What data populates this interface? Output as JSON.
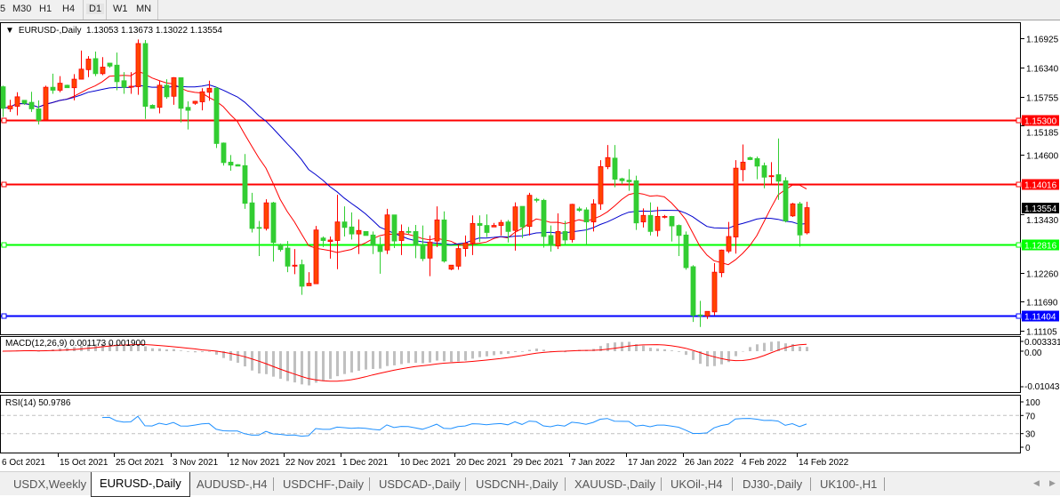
{
  "toolbar": {
    "timeframes": [
      "5",
      "M30",
      "H1",
      "H4",
      "D1",
      "W1",
      "MN"
    ],
    "active": "D1"
  },
  "chart": {
    "symbol": "EURUSD-,Daily",
    "ohlc": "1.13053 1.13673 1.13022 1.13554",
    "current_price": "1.13554",
    "colors": {
      "bull_body": "#ff4500",
      "bull_border": "#ff0000",
      "bear_body": "#32cd32",
      "ma_fast": "#ff0000",
      "ma_slow": "#0000cd",
      "macd_hist": "#c0c0c0",
      "macd_signal": "#ff0000",
      "rsi": "#1e90ff"
    }
  },
  "levels": [
    {
      "value": 1.153,
      "label": "1.15300",
      "color": "#ff0000"
    },
    {
      "value": 1.14016,
      "label": "1.14016",
      "color": "#ff0000"
    },
    {
      "value": 1.12816,
      "label": "1.12816",
      "color": "#00ff00"
    },
    {
      "value": 1.11404,
      "label": "1.11404",
      "color": "#0000ff"
    }
  ],
  "macd": {
    "label": "MACD(12,26,9) 0.001173 0.001900",
    "axis": [
      "0.003331",
      "0.00",
      "-0.010439"
    ]
  },
  "rsi": {
    "label": "RSI(14) 50.9786",
    "axis": [
      "100",
      "70",
      "30",
      "0"
    ]
  },
  "dates": [
    "6 Oct 2021",
    "15 Oct 2021",
    "25 Oct 2021",
    "3 Nov 2021",
    "12 Nov 2021",
    "22 Nov 2021",
    "1 Dec 2021",
    "10 Dec 2021",
    "20 Dec 2021",
    "29 Dec 2021",
    "7 Jan 2022",
    "17 Jan 2022",
    "26 Jan 2022",
    "4 Feb 2022",
    "14 Feb 2022"
  ],
  "tabs": [
    "USDX,Weekly",
    "EURUSD-,Daily",
    "AUDUSD-,H4",
    "USDCHF-,Daily",
    "USDCAD-,Daily",
    "USDCNH-,Daily",
    "XAUUSD-,Daily",
    "UKOil-,H4",
    "DJ30-,Daily",
    "UK100-,H1"
  ],
  "active_tab": "EURUSD-,Daily",
  "chart_data": {
    "type": "candlestick",
    "title": "EURUSD-,Daily",
    "ylim": [
      1.11105,
      1.16925
    ],
    "y_ticks": [
      1.16925,
      1.1634,
      1.15755,
      1.15185,
      1.146,
      1.1343,
      1.1226,
      1.1169,
      1.11105
    ],
    "y_tick_labels": [
      "1.16925",
      "1.16340",
      "1.15755",
      "1.15185",
      "1.14600",
      "1.13430",
      "1.12260",
      "1.11690",
      "1.11105"
    ],
    "x_tick_labels": [
      "6 Oct 2021",
      "15 Oct 2021",
      "25 Oct 2021",
      "3 Nov 2021",
      "12 Nov 2021",
      "22 Nov 2021",
      "1 Dec 2021",
      "10 Dec 2021",
      "20 Dec 2021",
      "29 Dec 2021",
      "7 Jan 2022",
      "17 Jan 2022",
      "26 Jan 2022",
      "4 Feb 2022",
      "14 Feb 2022"
    ],
    "ohlc_fields": [
      "open",
      "high",
      "low",
      "close"
    ],
    "candles": [
      [
        1.1596,
        1.1598,
        1.1536,
        1.1553
      ],
      [
        1.1552,
        1.157,
        1.1546,
        1.1558
      ],
      [
        1.1557,
        1.1585,
        1.1539,
        1.1576
      ],
      [
        1.1569,
        1.1569,
        1.156,
        1.1563
      ],
      [
        1.1565,
        1.1586,
        1.1546,
        1.1552
      ],
      [
        1.1552,
        1.1569,
        1.1521,
        1.1529
      ],
      [
        1.153,
        1.1598,
        1.1527,
        1.1595
      ],
      [
        1.1595,
        1.1622,
        1.1582,
        1.1589
      ],
      [
        1.1589,
        1.1617,
        1.1585,
        1.1603
      ],
      [
        1.1599,
        1.16,
        1.1594,
        1.1594
      ],
      [
        1.1594,
        1.1621,
        1.1569,
        1.1611
      ],
      [
        1.1611,
        1.1668,
        1.1611,
        1.1631
      ],
      [
        1.163,
        1.1657,
        1.1615,
        1.1651
      ],
      [
        1.1652,
        1.1666,
        1.1617,
        1.1622
      ],
      [
        1.1622,
        1.1655,
        1.1619,
        1.1635
      ],
      [
        1.1643,
        1.1643,
        1.1634,
        1.1637
      ],
      [
        1.1639,
        1.1664,
        1.1589,
        1.1606
      ],
      [
        1.1608,
        1.1625,
        1.1582,
        1.1595
      ],
      [
        1.1595,
        1.1625,
        1.1582,
        1.1597
      ],
      [
        1.1596,
        1.169,
        1.158,
        1.1682
      ],
      [
        1.1682,
        1.1689,
        1.1532,
        1.1557
      ],
      [
        1.1559,
        1.1561,
        1.1553,
        1.1553
      ],
      [
        1.1555,
        1.1608,
        1.1543,
        1.1599
      ],
      [
        1.1599,
        1.1611,
        1.1572,
        1.1576
      ],
      [
        1.1577,
        1.1615,
        1.156,
        1.1614
      ],
      [
        1.1614,
        1.1614,
        1.1525,
        1.1553
      ],
      [
        1.1555,
        1.1567,
        1.1511,
        1.1549
      ],
      [
        1.1563,
        1.1568,
        1.156,
        1.1567
      ],
      [
        1.1566,
        1.1593,
        1.1549,
        1.1586
      ],
      [
        1.1585,
        1.1608,
        1.1568,
        1.1593
      ],
      [
        1.1593,
        1.1596,
        1.1474,
        1.1483
      ],
      [
        1.1484,
        1.1485,
        1.1439,
        1.1445
      ],
      [
        1.1446,
        1.146,
        1.1429,
        1.144
      ],
      [
        1.1441,
        1.1442,
        1.1438,
        1.1438
      ],
      [
        1.1439,
        1.1462,
        1.1353,
        1.1364
      ],
      [
        1.1365,
        1.1385,
        1.1306,
        1.1314
      ],
      [
        1.1316,
        1.1329,
        1.1259,
        1.1315
      ],
      [
        1.1314,
        1.1372,
        1.131,
        1.1365
      ],
      [
        1.1365,
        1.1367,
        1.1248,
        1.1286
      ],
      [
        1.1282,
        1.1284,
        1.1268,
        1.1272
      ],
      [
        1.1275,
        1.1289,
        1.1227,
        1.1239
      ],
      [
        1.1239,
        1.1273,
        1.1223,
        1.1241
      ],
      [
        1.1242,
        1.1252,
        1.1182,
        1.1199
      ],
      [
        1.12,
        1.1227,
        1.12,
        1.1205
      ],
      [
        1.1204,
        1.1319,
        1.1204,
        1.1311
      ],
      [
        1.1295,
        1.1298,
        1.1277,
        1.129
      ],
      [
        1.1288,
        1.1298,
        1.1254,
        1.1291
      ],
      [
        1.129,
        1.1381,
        1.1233,
        1.1327
      ],
      [
        1.1327,
        1.1358,
        1.1298,
        1.1316
      ],
      [
        1.1317,
        1.1346,
        1.1292,
        1.1303
      ],
      [
        1.1303,
        1.1332,
        1.1263,
        1.131
      ],
      [
        1.1308,
        1.1308,
        1.13,
        1.13
      ],
      [
        1.1301,
        1.1308,
        1.1263,
        1.128
      ],
      [
        1.128,
        1.1297,
        1.1224,
        1.1268
      ],
      [
        1.1271,
        1.1353,
        1.1263,
        1.1341
      ],
      [
        1.1341,
        1.1341,
        1.1275,
        1.1289
      ],
      [
        1.129,
        1.1322,
        1.1261,
        1.1308
      ],
      [
        1.1308,
        1.1317,
        1.1303,
        1.1307
      ],
      [
        1.1308,
        1.1321,
        1.1255,
        1.128
      ],
      [
        1.1281,
        1.132,
        1.1249,
        1.1254
      ],
      [
        1.1255,
        1.13,
        1.1219,
        1.1287
      ],
      [
        1.1289,
        1.1358,
        1.1277,
        1.1331
      ],
      [
        1.1331,
        1.1348,
        1.1246,
        1.1249
      ],
      [
        1.1233,
        1.1241,
        1.1231,
        1.1241
      ],
      [
        1.1239,
        1.1282,
        1.1232,
        1.1274
      ],
      [
        1.1274,
        1.13,
        1.1258,
        1.1285
      ],
      [
        1.1285,
        1.134,
        1.1261,
        1.1324
      ],
      [
        1.1324,
        1.134,
        1.1287,
        1.132
      ],
      [
        1.132,
        1.1342,
        1.1297,
        1.1306
      ],
      [
        1.1317,
        1.1325,
        1.1317,
        1.132
      ],
      [
        1.132,
        1.1331,
        1.13,
        1.1326
      ],
      [
        1.1327,
        1.1331,
        1.1286,
        1.1308
      ],
      [
        1.131,
        1.1366,
        1.127,
        1.1357
      ],
      [
        1.1358,
        1.1358,
        1.1295,
        1.1317
      ],
      [
        1.1318,
        1.1385,
        1.13,
        1.138
      ],
      [
        1.1372,
        1.1375,
        1.1366,
        1.137
      ],
      [
        1.137,
        1.1373,
        1.1276,
        1.1298
      ],
      [
        1.13,
        1.132,
        1.1268,
        1.128
      ],
      [
        1.1279,
        1.1344,
        1.1273,
        1.1308
      ],
      [
        1.1308,
        1.1329,
        1.1281,
        1.1291
      ],
      [
        1.1292,
        1.1363,
        1.1286,
        1.1362
      ],
      [
        1.1353,
        1.1357,
        1.1347,
        1.135
      ],
      [
        1.1351,
        1.1356,
        1.128,
        1.1327
      ],
      [
        1.1327,
        1.1372,
        1.1308,
        1.1363
      ],
      [
        1.1363,
        1.145,
        1.1351,
        1.1437
      ],
      [
        1.1437,
        1.148,
        1.1432,
        1.1455
      ],
      [
        1.1454,
        1.148,
        1.1396,
        1.1412
      ],
      [
        1.1413,
        1.1415,
        1.1402,
        1.1409
      ],
      [
        1.141,
        1.1432,
        1.1389,
        1.1407
      ],
      [
        1.1409,
        1.1419,
        1.1311,
        1.1325
      ],
      [
        1.1327,
        1.1354,
        1.1316,
        1.134
      ],
      [
        1.134,
        1.1366,
        1.13,
        1.1308
      ],
      [
        1.131,
        1.1357,
        1.1298,
        1.1338
      ],
      [
        1.1337,
        1.1341,
        1.1334,
        1.1338
      ],
      [
        1.1338,
        1.1339,
        1.1288,
        1.1319
      ],
      [
        1.132,
        1.1322,
        1.1259,
        1.13
      ],
      [
        1.1301,
        1.1308,
        1.1232,
        1.1236
      ],
      [
        1.1238,
        1.1241,
        1.1128,
        1.1141
      ],
      [
        1.1142,
        1.117,
        1.1118,
        1.1141
      ],
      [
        1.114,
        1.1149,
        1.1134,
        1.1149
      ],
      [
        1.1148,
        1.1245,
        1.1141,
        1.1227
      ],
      [
        1.1226,
        1.1272,
        1.1217,
        1.1271
      ],
      [
        1.1269,
        1.1327,
        1.1265,
        1.1298
      ],
      [
        1.1297,
        1.145,
        1.1264,
        1.1434
      ],
      [
        1.1431,
        1.1481,
        1.1408,
        1.1446
      ],
      [
        1.1455,
        1.1457,
        1.145,
        1.1451
      ],
      [
        1.1453,
        1.1457,
        1.1412,
        1.1438
      ],
      [
        1.1439,
        1.1445,
        1.1394,
        1.1416
      ],
      [
        1.1417,
        1.1446,
        1.1402,
        1.1419
      ],
      [
        1.1421,
        1.1493,
        1.1371,
        1.1408
      ],
      [
        1.1409,
        1.1416,
        1.1326,
        1.1329
      ],
      [
        1.1339,
        1.1365,
        1.1337,
        1.1363
      ],
      [
        1.1363,
        1.1367,
        1.1278,
        1.1301
      ],
      [
        1.13053,
        1.13673,
        1.13022,
        1.13554
      ]
    ]
  }
}
